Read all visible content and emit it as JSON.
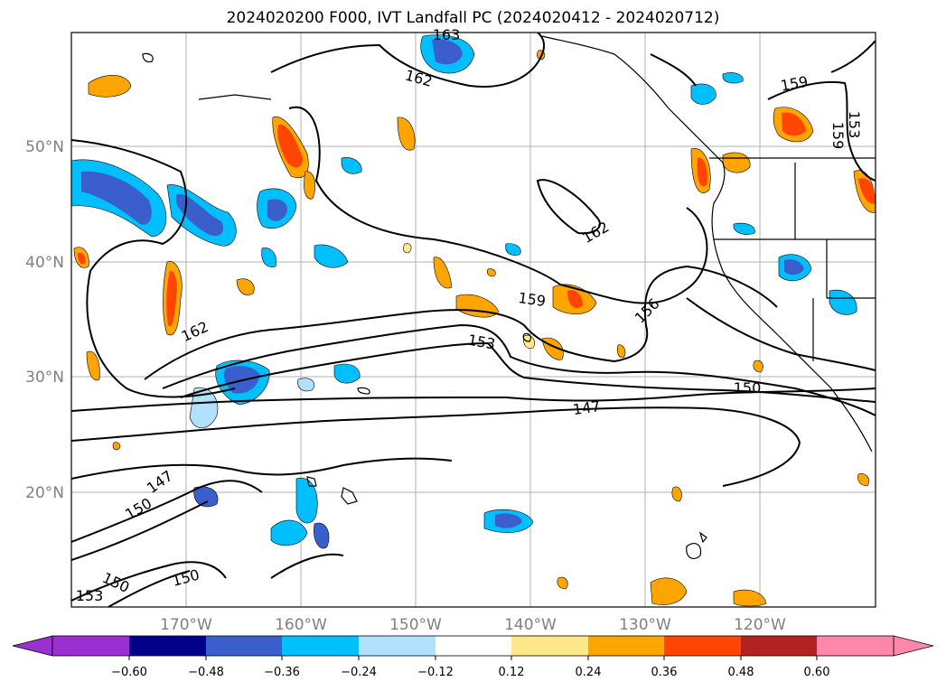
{
  "title": "2024020200 F000, IVT Landfall PC (2024020412 - 2024020712)",
  "lat_labels": [
    "50°N",
    "40°N",
    "30°N",
    "20°N"
  ],
  "lon_labels": [
    "170°W",
    "160°W",
    "150°W",
    "140°W",
    "130°W",
    "120°W"
  ],
  "colorbar": {
    "ticks": [
      "−0.60",
      "−0.48",
      "−0.36",
      "−0.24",
      "−0.12",
      "0.12",
      "0.24",
      "0.36",
      "0.48",
      "0.60"
    ],
    "colors": [
      "#9b30d0",
      "#00008b",
      "#3a5fcd",
      "#00bfff",
      "#b0e2ff",
      "#ffffff",
      "#ffe88a",
      "#ffa500",
      "#ff4500",
      "#b22222",
      "#ff88aa"
    ]
  },
  "contour_labels": [
    "163",
    "162",
    "159",
    "153",
    "159",
    "162",
    "162",
    "159",
    "156",
    "153",
    "150",
    "147",
    "147",
    "150",
    "150",
    "150",
    "153"
  ],
  "colors": {
    "positive": "#ffa500",
    "negative": "#00bfff"
  }
}
